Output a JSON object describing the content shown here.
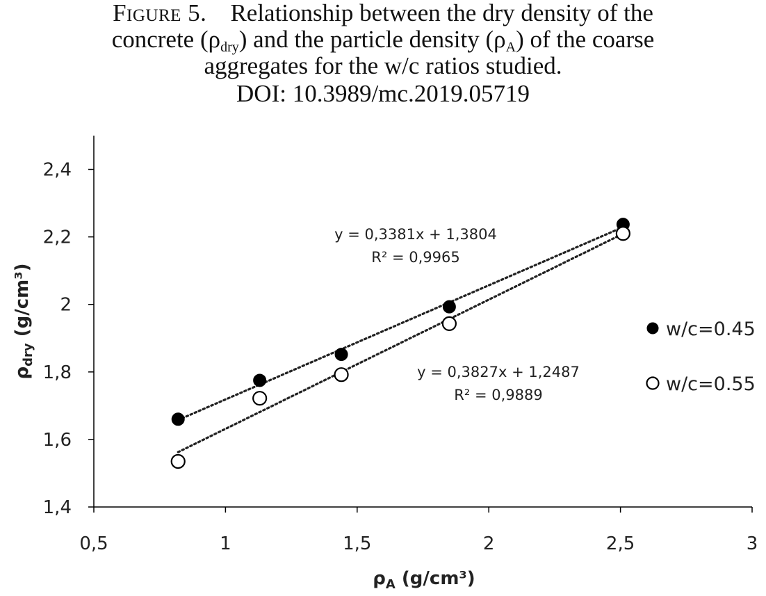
{
  "caption": {
    "figure_label": "Figure 5.",
    "line1_text": "Relationship between the dry density of the",
    "line2_pre": "concrete (ρ",
    "line2_sub1": "dry",
    "line2_mid": ") and the particle density (ρ",
    "line2_sub2": "A",
    "line2_post": ") of the coarse",
    "line3": "aggregates for the w/c ratios studied.",
    "line4": "DOI: 10.3989/mc.2019.05719"
  },
  "chart_data": {
    "type": "scatter",
    "xlabel": "ρA (g/cm³)",
    "ylabel": "ρdry (g/cm³)",
    "xlabel_parts": {
      "base": "ρ",
      "sub": "A",
      "rest": " (g/cm³)"
    },
    "ylabel_parts": {
      "base": "ρ",
      "sub": "dry",
      "rest": " (g/cm³)"
    },
    "xlim": [
      0.5,
      3
    ],
    "ylim": [
      1.4,
      2.5
    ],
    "x_ticks": [
      0.5,
      1,
      1.5,
      2,
      2.5,
      3
    ],
    "x_tick_labels": [
      "0,5",
      "1",
      "1,5",
      "2",
      "2,5",
      "3"
    ],
    "y_ticks": [
      1.4,
      1.6,
      1.8,
      2.0,
      2.2,
      2.4
    ],
    "y_tick_labels": [
      "1,4",
      "1,6",
      "1,8",
      "2",
      "2,2",
      "2,4"
    ],
    "grid": false,
    "legend_position": "right",
    "series": [
      {
        "name": "w/c=0.45",
        "marker": "filled-circle",
        "color": "#000000",
        "x": [
          0.82,
          1.13,
          1.44,
          1.85,
          2.51
        ],
        "y": [
          1.66,
          1.775,
          1.852,
          1.993,
          2.237
        ],
        "trendline": {
          "slope": 0.3381,
          "intercept": 1.3804,
          "equation": "y = 0,3381x + 1,3804",
          "r2": "R² = 0,9965"
        }
      },
      {
        "name": "w/c=0.55",
        "marker": "open-circle",
        "color": "#000000",
        "x": [
          0.82,
          1.13,
          1.44,
          1.85,
          2.51
        ],
        "y": [
          1.535,
          1.722,
          1.792,
          1.943,
          2.21
        ],
        "trendline": {
          "slope": 0.3827,
          "intercept": 1.2487,
          "equation": "y = 0,3827x + 1,2487",
          "r2": "R² = 0,9889"
        }
      }
    ]
  }
}
